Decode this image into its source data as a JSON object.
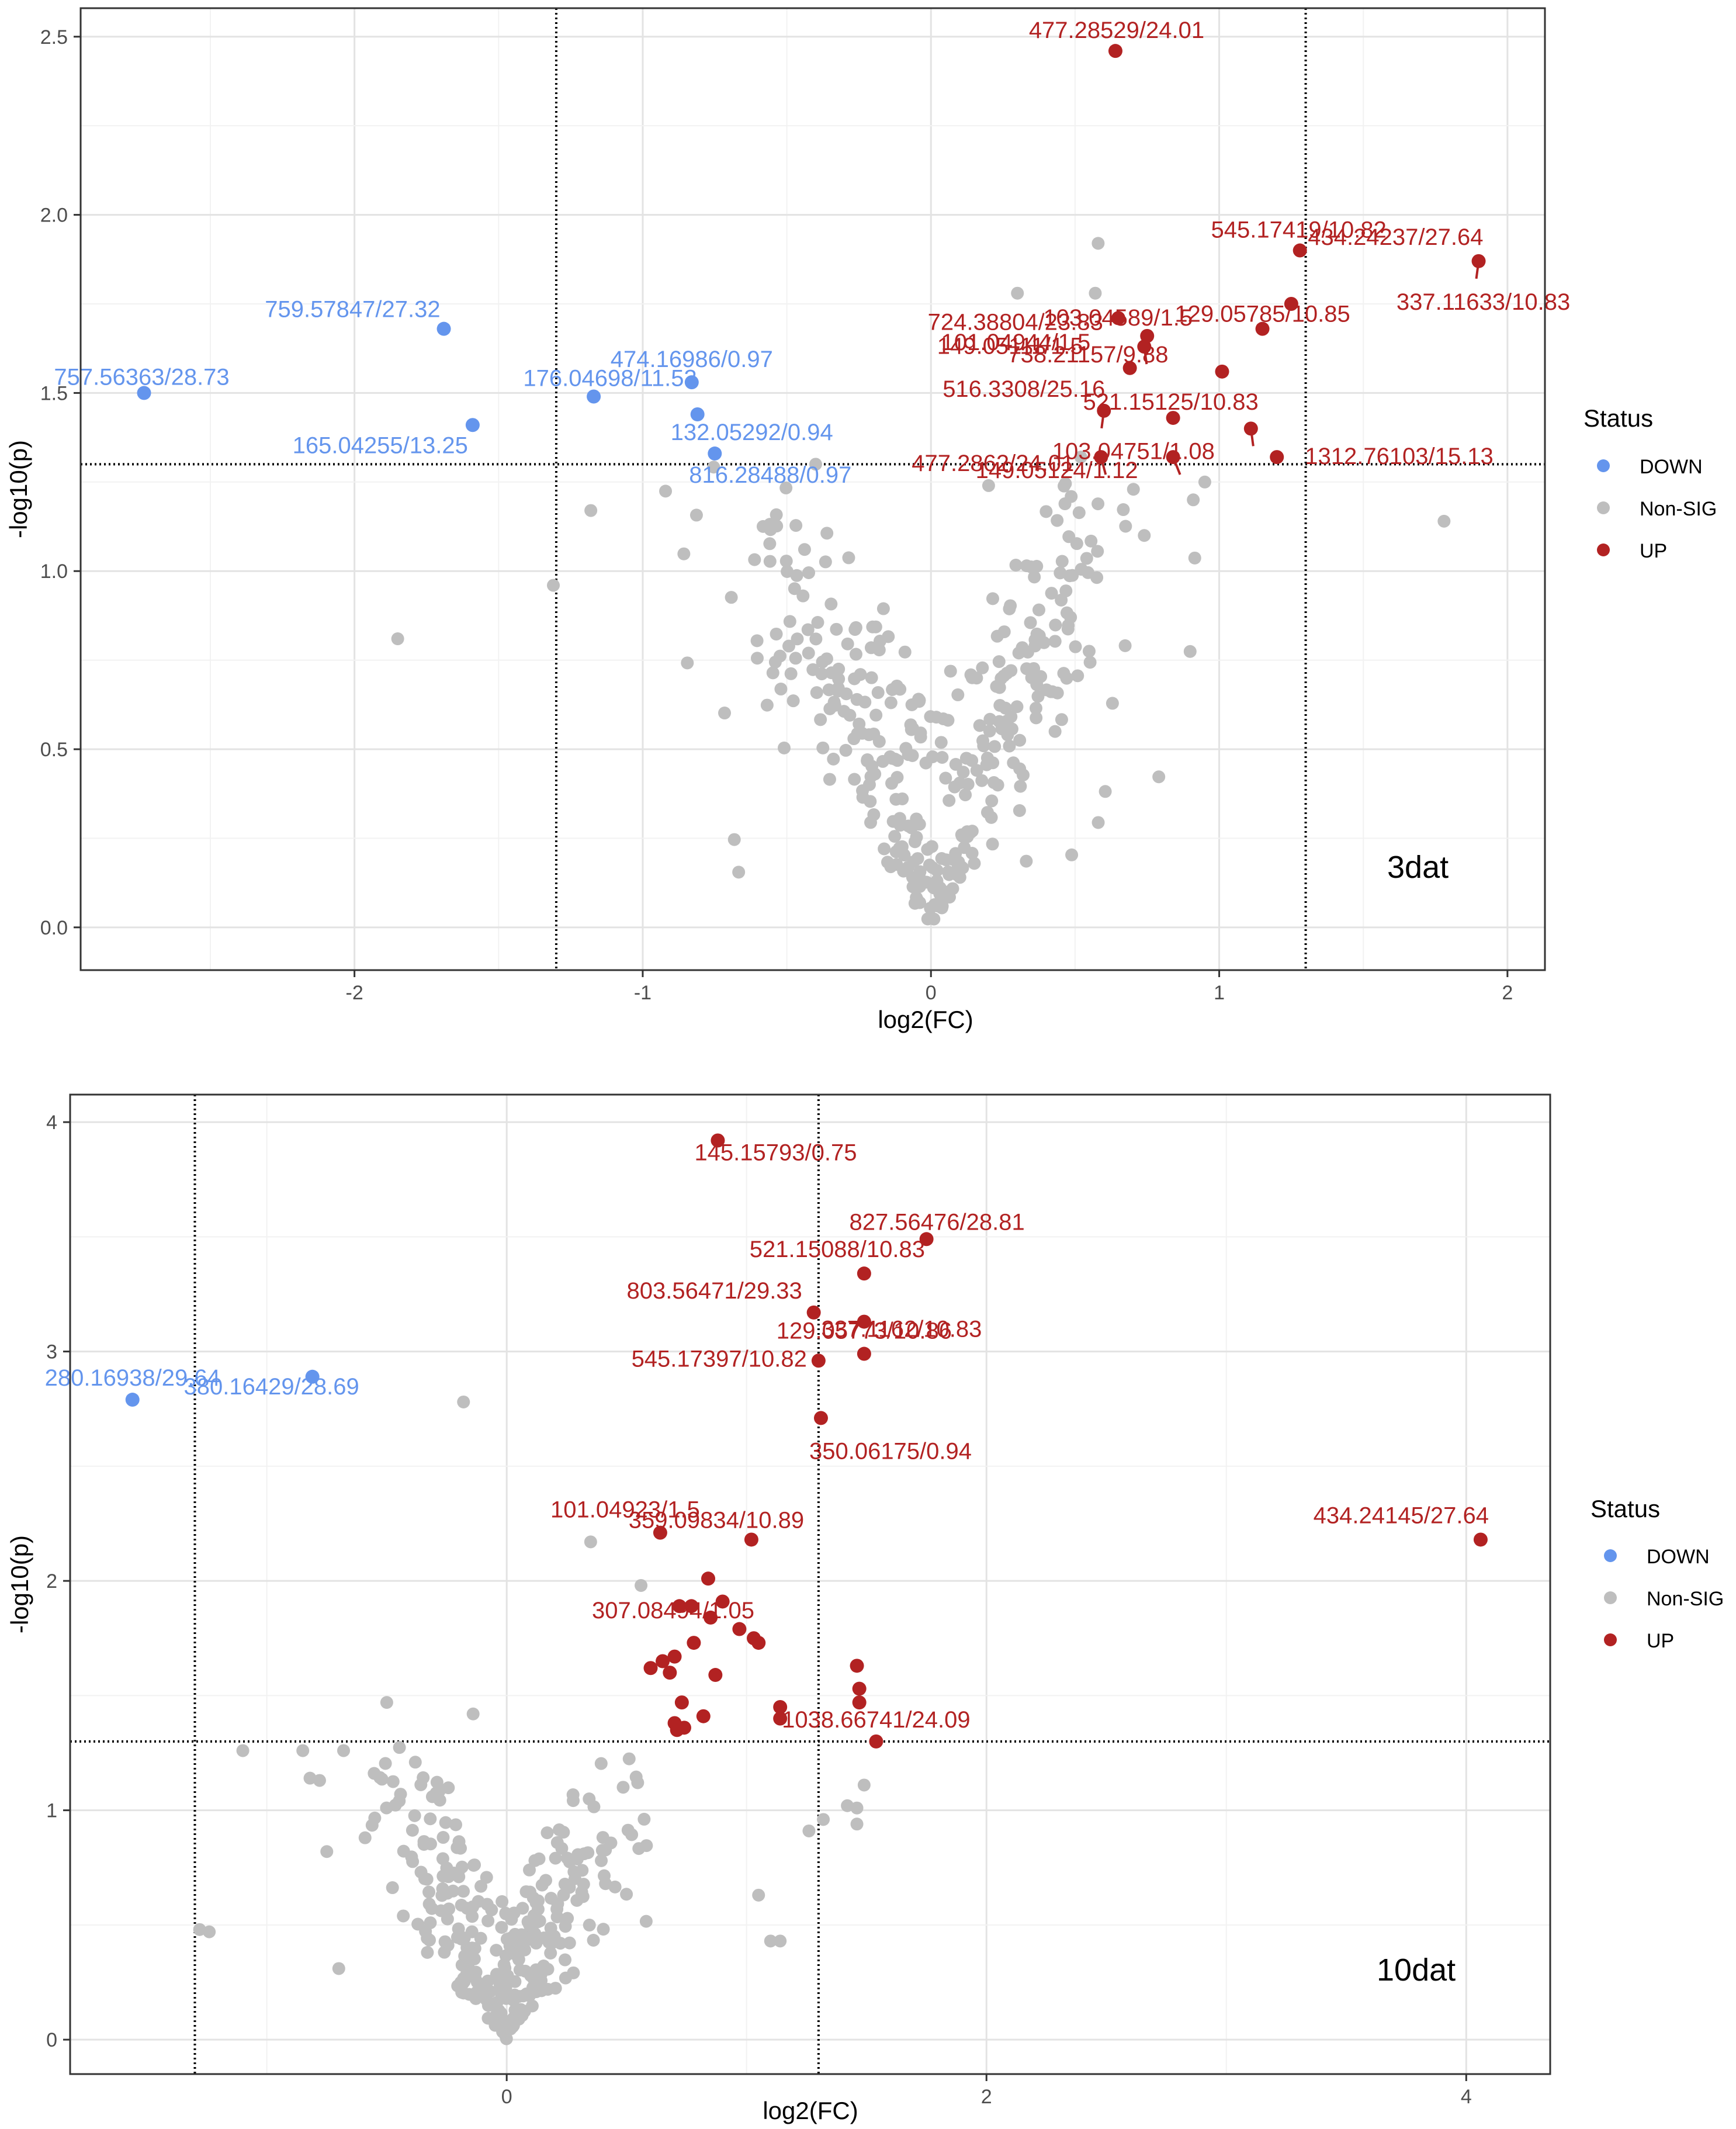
{
  "chart_data": [
    {
      "type": "scatter",
      "panel_label": "3dat",
      "xlabel": "log2(FC)",
      "ylabel": "-log10(p)",
      "xlim": [
        -2.95,
        2.13
      ],
      "ylim": [
        -0.12,
        2.58
      ],
      "xticks": [
        -2,
        -1,
        0,
        1,
        2
      ],
      "yticks": [
        0.0,
        0.5,
        1.0,
        1.5,
        2.0,
        2.5
      ],
      "ytick_labels": [
        "0.0",
        "0.5",
        "1.0",
        "1.5",
        "2.0",
        "2.5"
      ],
      "thresholds": {
        "x": [
          -1.3,
          1.3
        ],
        "y": 1.3
      },
      "legend": {
        "title": "Status",
        "entries": [
          {
            "label": "DOWN",
            "color": "#6495ed"
          },
          {
            "label": "Non-SIG",
            "color": "#bebebe"
          },
          {
            "label": "UP",
            "color": "#b22222"
          }
        ]
      },
      "down_points": [
        {
          "x": -2.73,
          "y": 1.5,
          "label": "757.56363/28.73"
        },
        {
          "x": -1.69,
          "y": 1.68,
          "label": "759.57847/27.32"
        },
        {
          "x": -1.59,
          "y": 1.41,
          "label": "165.04255/13.25"
        },
        {
          "x": -1.17,
          "y": 1.49,
          "label": "176.04698/11.53"
        },
        {
          "x": -0.83,
          "y": 1.53,
          "label": "474.16986/0.97"
        },
        {
          "x": -0.81,
          "y": 1.44,
          "label": "132.05292/0.94"
        },
        {
          "x": -0.75,
          "y": 1.33,
          "label": "816.28488/0.97"
        }
      ],
      "up_points": [
        {
          "x": 0.64,
          "y": 2.46,
          "label": "477.28529/24.01"
        },
        {
          "x": 1.28,
          "y": 1.9,
          "label": "545.17419/10.82"
        },
        {
          "x": 1.9,
          "y": 1.87,
          "label": "434.24237/27.64"
        },
        {
          "x": 0.65,
          "y": 1.71,
          "label": "724.38804/23.83"
        },
        {
          "x": 1.25,
          "y": 1.75,
          "label": "337.11633/10.83"
        },
        {
          "x": 0.75,
          "y": 1.66,
          "label": "103.04589/1.5"
        },
        {
          "x": 0.74,
          "y": 1.63,
          "label": "101.04944/1.5"
        },
        {
          "x": 1.15,
          "y": 1.68,
          "label": "129.05785/10.85"
        },
        {
          "x": 0.69,
          "y": 1.57,
          "label": "149.05111/1.5"
        },
        {
          "x": 1.01,
          "y": 1.56,
          "label": "738.21157/9.88"
        },
        {
          "x": 0.6,
          "y": 1.45,
          "label": "516.3308/25.16"
        },
        {
          "x": 0.84,
          "y": 1.43,
          "label": "521.15125/10.83"
        },
        {
          "x": 1.11,
          "y": 1.4,
          "label": "103.04751/1.08"
        },
        {
          "x": 0.59,
          "y": 1.32,
          "label": "477.2862/24.01"
        },
        {
          "x": 1.2,
          "y": 1.32,
          "label": "1312.76103/15.13"
        },
        {
          "x": 0.84,
          "y": 1.32,
          "label": "149.05124/1.12"
        }
      ]
    },
    {
      "type": "scatter",
      "panel_label": "10dat",
      "xlabel": "log2(FC)",
      "ylabel": "-log10(p)",
      "xlim": [
        -1.82,
        4.35
      ],
      "ylim": [
        -0.15,
        4.12
      ],
      "xticks": [
        0,
        2,
        4
      ],
      "yticks": [
        0,
        1,
        2,
        3,
        4
      ],
      "ytick_labels": [
        "0",
        "1",
        "2",
        "3",
        "4"
      ],
      "thresholds": {
        "x": [
          -1.3,
          1.3
        ],
        "y": 1.3
      },
      "legend": {
        "title": "Status",
        "entries": [
          {
            "label": "DOWN",
            "color": "#6495ed"
          },
          {
            "label": "Non-SIG",
            "color": "#bebebe"
          },
          {
            "label": "UP",
            "color": "#b22222"
          }
        ]
      },
      "down_points": [
        {
          "x": -1.56,
          "y": 2.79,
          "label": "280.16938/29.64"
        },
        {
          "x": -0.81,
          "y": 2.89,
          "label": "380.16429/28.69"
        }
      ],
      "up_points": [
        {
          "x": 0.88,
          "y": 3.92,
          "label": "145.15793/0.75"
        },
        {
          "x": 1.75,
          "y": 3.49,
          "label": "827.56476/28.81"
        },
        {
          "x": 1.49,
          "y": 3.34,
          "label": "521.15088/10.83"
        },
        {
          "x": 1.28,
          "y": 3.17,
          "label": "803.56471/29.33"
        },
        {
          "x": 1.49,
          "y": 3.13,
          "label": "337.1162/10.83"
        },
        {
          "x": 1.49,
          "y": 2.99,
          "label": "129.05773/10.86"
        },
        {
          "x": 1.3,
          "y": 2.96,
          "label": "545.17397/10.82"
        },
        {
          "x": 1.31,
          "y": 2.71,
          "label": "350.06175/0.94"
        },
        {
          "x": 4.06,
          "y": 2.18,
          "label": "434.24145/27.64"
        },
        {
          "x": 0.64,
          "y": 2.21,
          "label": "101.04923/1.5"
        },
        {
          "x": 1.02,
          "y": 2.18,
          "label": "359.09834/10.89"
        },
        {
          "x": 0.84,
          "y": 2.01,
          "label": "307.08494/1.05"
        },
        {
          "x": 1.54,
          "y": 1.3,
          "label": "1038.66741/24.09"
        },
        {
          "x": 0.72,
          "y": 1.89
        },
        {
          "x": 0.77,
          "y": 1.89
        },
        {
          "x": 0.9,
          "y": 1.91
        },
        {
          "x": 0.85,
          "y": 1.84
        },
        {
          "x": 0.97,
          "y": 1.79
        },
        {
          "x": 1.05,
          "y": 1.73
        },
        {
          "x": 1.03,
          "y": 1.75
        },
        {
          "x": 0.78,
          "y": 1.73
        },
        {
          "x": 0.7,
          "y": 1.67
        },
        {
          "x": 0.65,
          "y": 1.65
        },
        {
          "x": 0.6,
          "y": 1.62
        },
        {
          "x": 0.68,
          "y": 1.6
        },
        {
          "x": 0.87,
          "y": 1.59
        },
        {
          "x": 0.73,
          "y": 1.47
        },
        {
          "x": 0.82,
          "y": 1.41
        },
        {
          "x": 0.7,
          "y": 1.38
        },
        {
          "x": 0.74,
          "y": 1.36
        },
        {
          "x": 0.71,
          "y": 1.35
        },
        {
          "x": 1.14,
          "y": 1.45
        },
        {
          "x": 1.14,
          "y": 1.4
        },
        {
          "x": 1.46,
          "y": 1.63
        },
        {
          "x": 1.47,
          "y": 1.53
        },
        {
          "x": 1.47,
          "y": 1.47
        }
      ]
    }
  ]
}
